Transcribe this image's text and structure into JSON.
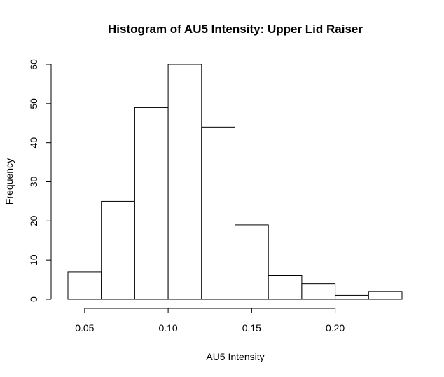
{
  "chart_data": {
    "type": "bar",
    "title": "Histogram of AU5 Intensity: Upper Lid Raiser",
    "xlabel": "AU5 Intensity",
    "ylabel": "Frequency",
    "bins": [
      {
        "x0": 0.04,
        "x1": 0.06,
        "value": 7
      },
      {
        "x0": 0.06,
        "x1": 0.08,
        "value": 25
      },
      {
        "x0": 0.08,
        "x1": 0.1,
        "value": 49
      },
      {
        "x0": 0.1,
        "x1": 0.12,
        "value": 60
      },
      {
        "x0": 0.12,
        "x1": 0.14,
        "value": 44
      },
      {
        "x0": 0.14,
        "x1": 0.16,
        "value": 19
      },
      {
        "x0": 0.16,
        "x1": 0.18,
        "value": 6
      },
      {
        "x0": 0.18,
        "x1": 0.2,
        "value": 4
      },
      {
        "x0": 0.2,
        "x1": 0.22,
        "value": 1
      },
      {
        "x0": 0.22,
        "x1": 0.24,
        "value": 2
      }
    ],
    "xlim": [
      0.04,
      0.24
    ],
    "ylim": [
      0,
      60
    ],
    "x_ticks": [
      {
        "value": 0.05,
        "label": "0.05"
      },
      {
        "value": 0.1,
        "label": "0.10"
      },
      {
        "value": 0.15,
        "label": "0.15"
      },
      {
        "value": 0.2,
        "label": "0.20"
      }
    ],
    "y_ticks": [
      {
        "value": 0,
        "label": "0"
      },
      {
        "value": 10,
        "label": "10"
      },
      {
        "value": 20,
        "label": "20"
      },
      {
        "value": 30,
        "label": "30"
      },
      {
        "value": 40,
        "label": "40"
      },
      {
        "value": 50,
        "label": "50"
      },
      {
        "value": 60,
        "label": "60"
      }
    ],
    "grid": false,
    "bar_fill": "#ffffff",
    "bar_stroke": "#000000"
  }
}
